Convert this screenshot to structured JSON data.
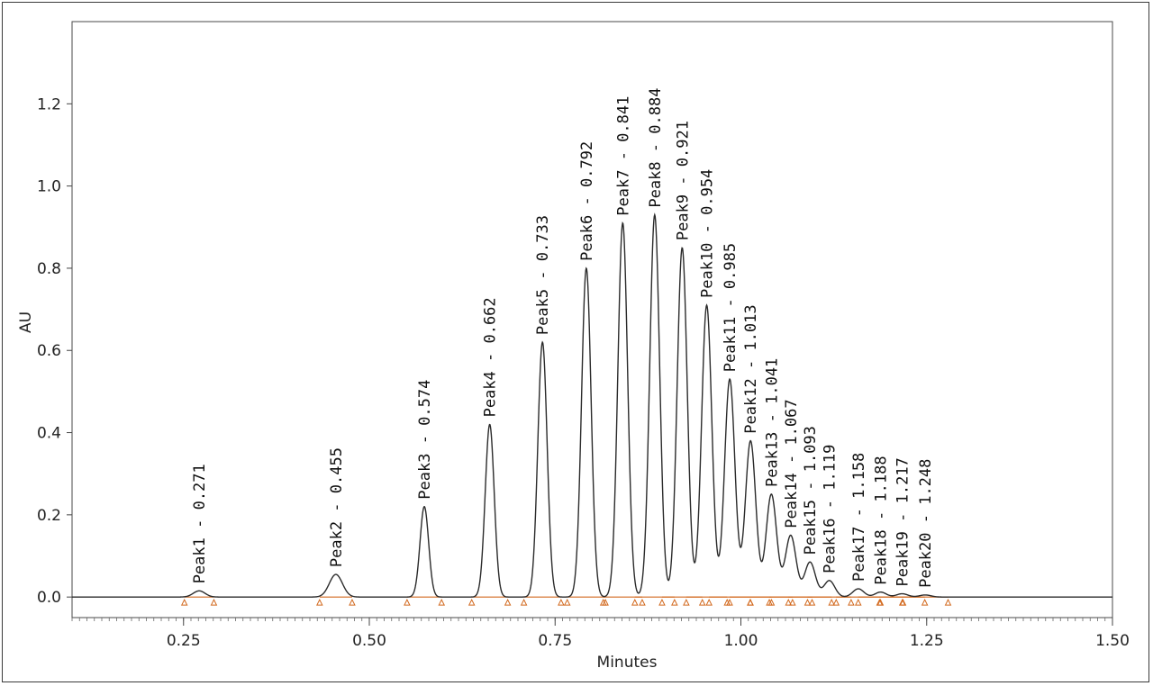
{
  "chart_data": {
    "type": "line",
    "xlabel": "Minutes",
    "ylabel": "AU",
    "xlim": [
      0.1,
      1.5
    ],
    "ylim": [
      -0.05,
      1.4
    ],
    "x_ticks": [
      {
        "value": 0.25,
        "label": "0.25"
      },
      {
        "value": 0.5,
        "label": "0.50"
      },
      {
        "value": 0.75,
        "label": "0.75"
      },
      {
        "value": 1.0,
        "label": "1.00"
      },
      {
        "value": 1.25,
        "label": "1.25"
      },
      {
        "value": 1.5,
        "label": "1.50"
      }
    ],
    "y_ticks": [
      {
        "value": 0.0,
        "label": "0.0"
      },
      {
        "value": 0.2,
        "label": "0.2"
      },
      {
        "value": 0.4,
        "label": "0.4"
      },
      {
        "value": 0.6,
        "label": "0.6"
      },
      {
        "value": 0.8,
        "label": "0.8"
      },
      {
        "value": 1.0,
        "label": "1.0"
      },
      {
        "value": 1.2,
        "label": "1.2"
      }
    ],
    "grid": false,
    "trace_color": "#2b2b2b",
    "baseline_color": "#d2691e",
    "peaks": [
      {
        "name": "Peak1",
        "rt": 0.271,
        "height": 0.015,
        "label": "Peak1 - 0.271"
      },
      {
        "name": "Peak2",
        "rt": 0.455,
        "height": 0.055,
        "label": "Peak2 - 0.455"
      },
      {
        "name": "Peak3",
        "rt": 0.574,
        "height": 0.22,
        "label": "Peak3 - 0.574"
      },
      {
        "name": "Peak4",
        "rt": 0.662,
        "height": 0.42,
        "label": "Peak4 - 0.662"
      },
      {
        "name": "Peak5",
        "rt": 0.733,
        "height": 0.62,
        "label": "Peak5 - 0.733"
      },
      {
        "name": "Peak6",
        "rt": 0.792,
        "height": 0.8,
        "label": "Peak6 - 0.792"
      },
      {
        "name": "Peak7",
        "rt": 0.841,
        "height": 0.91,
        "label": "Peak7 - 0.841"
      },
      {
        "name": "Peak8",
        "rt": 0.884,
        "height": 0.93,
        "label": "Peak8 - 0.884"
      },
      {
        "name": "Peak9",
        "rt": 0.921,
        "height": 0.85,
        "label": "Peak9 - 0.921"
      },
      {
        "name": "Peak10",
        "rt": 0.954,
        "height": 0.71,
        "label": "Peak10 - 0.954"
      },
      {
        "name": "Peak11",
        "rt": 0.985,
        "height": 0.53,
        "label": "Peak11 - 0.985"
      },
      {
        "name": "Peak12",
        "rt": 1.013,
        "height": 0.38,
        "label": "Peak12 - 1.013"
      },
      {
        "name": "Peak13",
        "rt": 1.041,
        "height": 0.25,
        "label": "Peak13 - 1.041"
      },
      {
        "name": "Peak14",
        "rt": 1.067,
        "height": 0.15,
        "label": "Peak14 - 1.067"
      },
      {
        "name": "Peak15",
        "rt": 1.093,
        "height": 0.085,
        "label": "Peak15 - 1.093"
      },
      {
        "name": "Peak16",
        "rt": 1.119,
        "height": 0.04,
        "label": "Peak16 - 1.119"
      },
      {
        "name": "Peak17",
        "rt": 1.158,
        "height": 0.02,
        "label": "Peak17 - 1.158"
      },
      {
        "name": "Peak18",
        "rt": 1.188,
        "height": 0.012,
        "label": "Peak18 - 1.188"
      },
      {
        "name": "Peak19",
        "rt": 1.217,
        "height": 0.008,
        "label": "Peak19 - 1.217"
      },
      {
        "name": "Peak20",
        "rt": 1.248,
        "height": 0.005,
        "label": "Peak20 - 1.248"
      }
    ]
  }
}
